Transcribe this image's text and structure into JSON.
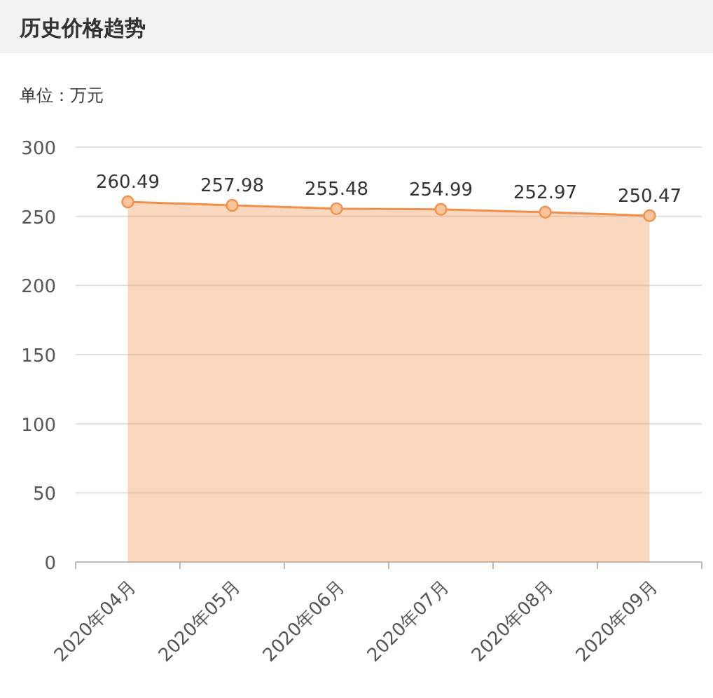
{
  "chart_data": {
    "type": "area",
    "title": "历史价格趋势",
    "subtitle": "单位：万元",
    "categories": [
      "2020年04月",
      "2020年05月",
      "2020年06月",
      "2020年07月",
      "2020年08月",
      "2020年09月"
    ],
    "series": [
      {
        "color": "#f0904a",
        "values": [
          260.49,
          257.98,
          255.48,
          254.99,
          252.97,
          250.47
        ]
      }
    ],
    "ylim": [
      0,
      300
    ],
    "yticks": [
      0,
      50,
      100,
      150,
      200,
      250,
      300
    ],
    "grid": "y",
    "marker": "circle",
    "data_labels": true
  }
}
